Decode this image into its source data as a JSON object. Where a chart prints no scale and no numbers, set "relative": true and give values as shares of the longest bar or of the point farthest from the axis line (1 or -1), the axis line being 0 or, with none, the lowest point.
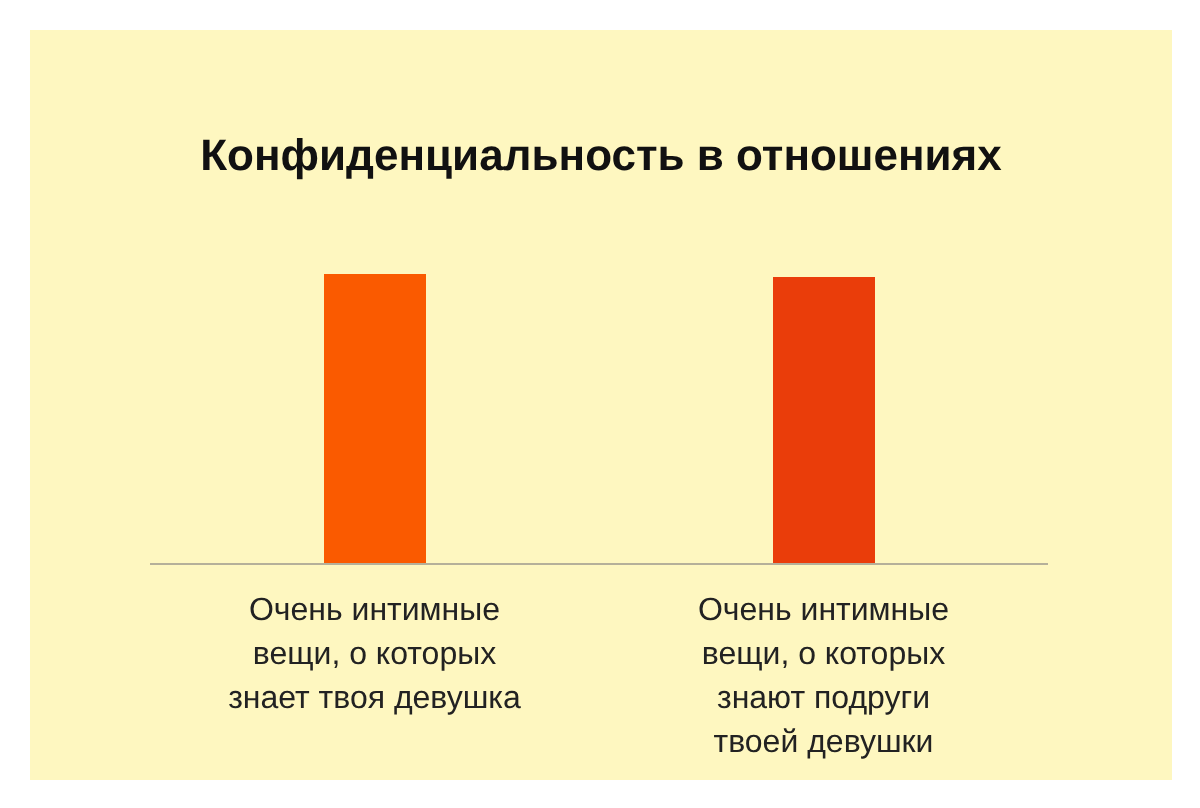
{
  "chart_data": {
    "type": "bar",
    "title": "Конфиденциальность в отношениях",
    "categories": [
      "Очень интимные вещи, о которых знает твоя девушка",
      "Очень интимные вещи, о которых знают подруги твоей девушки"
    ],
    "values": [
      1,
      0.99
    ],
    "colors": [
      "#fa5a00",
      "#ea3d0a"
    ],
    "relative": true
  }
}
